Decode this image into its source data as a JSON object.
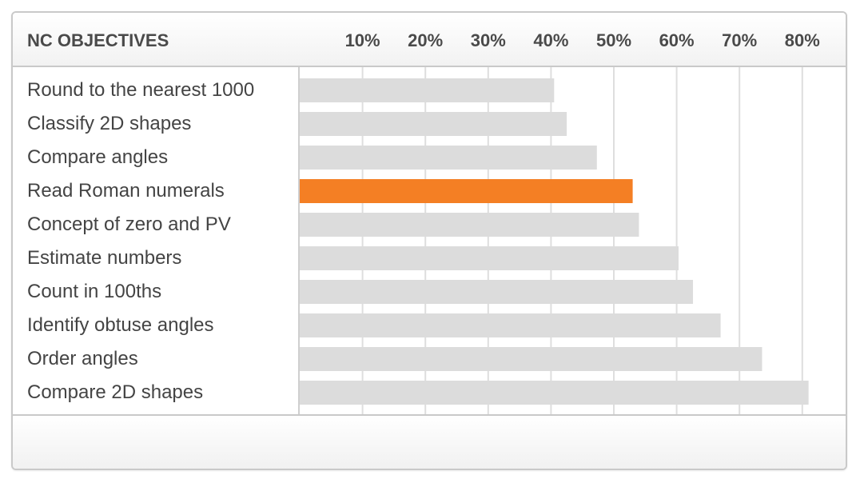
{
  "header": {
    "title": "NC OBJECTIVES"
  },
  "colors": {
    "bar_default": "#dcdcdc",
    "bar_highlight": "#f47f24",
    "grid": "#dedede"
  },
  "chart_data": {
    "type": "bar",
    "orientation": "horizontal",
    "categories": [
      "Round to the nearest 1000",
      "Classify 2D shapes",
      "Compare angles",
      "Read Roman numerals",
      "Concept of zero and PV",
      "Estimate numbers",
      "Count in 100ths",
      "Identify obtuse angles",
      "Order angles",
      "Compare 2D shapes"
    ],
    "values": [
      40.5,
      42.5,
      47.3,
      53,
      54,
      60.3,
      62.6,
      67,
      73.6,
      81
    ],
    "highlight_index": 3,
    "xlim": [
      0,
      80
    ],
    "ticks": [
      10,
      20,
      30,
      40,
      50,
      60,
      70,
      80
    ],
    "tick_labels": [
      "10%",
      "20%",
      "30%",
      "40%",
      "50%",
      "60%",
      "70%",
      "80%"
    ],
    "tick_position": "top",
    "grid": true,
    "legend": false
  }
}
